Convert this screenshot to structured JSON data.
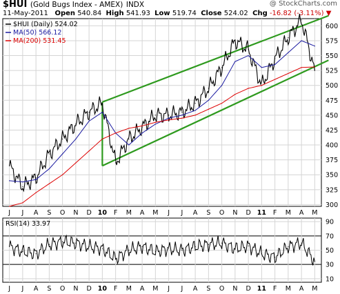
{
  "header": {
    "symbol": "$HUI",
    "name": "(Gold Bugs Index - AMEX)",
    "exchange": "INDX",
    "credit": "@ StockCharts.com",
    "date": "11-May-2011",
    "open_label": "Open",
    "open": "540.84",
    "high_label": "High",
    "high": "541.93",
    "low_label": "Low",
    "low": "519.74",
    "close_label": "Close",
    "close": "524.02",
    "chg_label": "Chg",
    "chg": "-16.82 (-3.11%)",
    "down_marker": "▼"
  },
  "colors": {
    "price": "#000000",
    "ma50": "#1a1aa0",
    "ma200": "#dd0000",
    "channel": "#2e9a1e",
    "grid": "#d4d4d4",
    "rsi": "#000000",
    "down_bar": "#cc0000"
  },
  "chart_data": [
    {
      "type": "line",
      "title": "$HUI (Daily) 524.02",
      "legend": [
        {
          "label": "$HUI (Daily) 524.02",
          "color": "#000000"
        },
        {
          "label": "MA(50) 566.12",
          "color": "#1a1aa0"
        },
        {
          "label": "MA(200) 531.45",
          "color": "#dd0000"
        }
      ],
      "legend_position": "top-left",
      "x_tick_labels": [
        "J",
        "J",
        "A",
        "S",
        "O",
        "N",
        "D",
        "10",
        "F",
        "M",
        "A",
        "M",
        "J",
        "J",
        "A",
        "S",
        "O",
        "N",
        "D",
        "11",
        "F",
        "M",
        "A",
        "M"
      ],
      "y_ticks": [
        300,
        325,
        350,
        375,
        400,
        425,
        450,
        475,
        500,
        525,
        550,
        575,
        600
      ],
      "ylim": [
        297,
        612
      ],
      "grid": true,
      "series": [
        {
          "name": "$HUI (Daily)",
          "x": [
            0,
            1,
            2,
            3,
            4,
            5,
            6,
            7,
            8,
            9,
            10,
            11,
            12,
            13,
            14,
            15,
            16,
            17,
            18,
            19,
            20,
            21,
            22,
            23
          ],
          "y": [
            365,
            330,
            345,
            385,
            410,
            435,
            455,
            470,
            370,
            410,
            430,
            450,
            450,
            455,
            470,
            495,
            530,
            575,
            560,
            500,
            545,
            580,
            610,
            525
          ]
        },
        {
          "name": "MA(50)",
          "x": [
            0,
            1,
            2,
            3,
            4,
            5,
            6,
            7,
            8,
            9,
            10,
            11,
            12,
            13,
            14,
            15,
            16,
            17,
            18,
            19,
            20,
            21,
            22,
            23
          ],
          "y": [
            340,
            338,
            342,
            360,
            385,
            410,
            440,
            455,
            420,
            400,
            420,
            435,
            445,
            450,
            458,
            475,
            500,
            540,
            550,
            530,
            535,
            555,
            575,
            566
          ]
        },
        {
          "name": "MA(200)",
          "x": [
            0,
            1,
            2,
            3,
            4,
            5,
            6,
            7,
            8,
            9,
            10,
            11,
            12,
            13,
            14,
            15,
            16,
            17,
            18,
            19,
            20,
            21,
            22,
            23
          ],
          "y": [
            297,
            303,
            320,
            335,
            350,
            370,
            390,
            410,
            420,
            428,
            432,
            438,
            442,
            445,
            450,
            460,
            470,
            485,
            495,
            500,
            510,
            520,
            530,
            531
          ]
        }
      ],
      "channel": {
        "upper": [
          [
            7,
            472
          ],
          [
            23,
            610
          ]
        ],
        "lower": [
          [
            7,
            365
          ],
          [
            23,
            533
          ]
        ]
      }
    },
    {
      "type": "line",
      "title": "RSI(14) 33.97",
      "legend": [
        {
          "label": "RSI(14) 33.97",
          "color": "#000000"
        }
      ],
      "y_ticks": [
        10,
        30,
        50,
        70,
        90
      ],
      "ylim": [
        5,
        95
      ],
      "reference_lines": [
        30,
        70
      ],
      "x_tick_labels": [
        "J",
        "J",
        "A",
        "S",
        "O",
        "N",
        "D",
        "10",
        "F",
        "M",
        "A",
        "M",
        "J",
        "J",
        "A",
        "S",
        "O",
        "N",
        "D",
        "11",
        "F",
        "M",
        "A",
        "M"
      ],
      "series": [
        {
          "name": "RSI(14)",
          "x": [
            0,
            1,
            2,
            3,
            4,
            5,
            6,
            7,
            8,
            9,
            10,
            11,
            12,
            13,
            14,
            15,
            16,
            17,
            18,
            19,
            20,
            21,
            22,
            23
          ],
          "y": [
            55,
            48,
            45,
            58,
            62,
            60,
            55,
            52,
            38,
            50,
            55,
            48,
            52,
            50,
            55,
            58,
            60,
            52,
            56,
            45,
            40,
            55,
            60,
            34
          ]
        }
      ]
    }
  ]
}
